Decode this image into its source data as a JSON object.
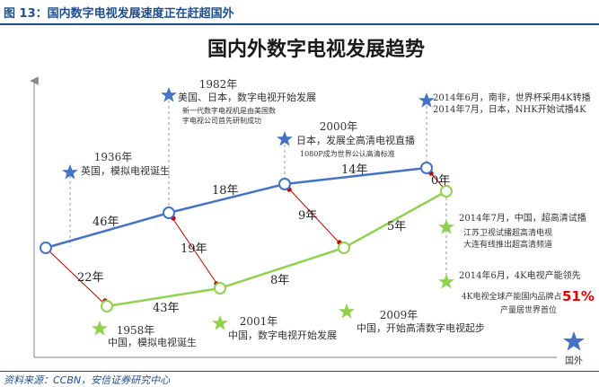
{
  "figure_label": "图 13：国内数字电视发展速度正在赶超国外",
  "title": "国内外数字电视发展趋势",
  "source": "资料来源：CCBN，安信证券研究中心",
  "legend": {
    "foreign_label": "国外"
  },
  "colors": {
    "foreign": "#4472c4",
    "domestic": "#92d050",
    "connector": "#c00000",
    "figure": "#1f4e8c",
    "highlight": "#e00000"
  },
  "foreign_events": [
    {
      "year": "1936年",
      "desc": "英国，模拟电视诞生",
      "note": ""
    },
    {
      "year": "1982年",
      "desc": "美国、日本，数字电视开始发展",
      "note": "新一代数字电视机是由美国数字电视公司首先研制成功"
    },
    {
      "year": "2000年",
      "desc": "日本，发展全高清电视直播",
      "note": "1080P成为世界公认高清标准"
    },
    {
      "year": "",
      "desc": "2014年6月，南非，世界杯采用4K转播",
      "note": "2014年7月，日本，NHK开始试播4K"
    }
  ],
  "domestic_events": [
    {
      "year": "1958年",
      "desc": "中国，模拟电视诞生",
      "note": ""
    },
    {
      "year": "2001年",
      "desc": "中国，数字电视开始发展",
      "note": ""
    },
    {
      "year": "2009年",
      "desc": "中国，开始高清数字电视起步",
      "note": ""
    },
    {
      "year": "",
      "desc": "2014年7月，中国，超高清试播",
      "note": "江苏卫视试播超高清电视",
      "note2": "大连有线推出超高清频道"
    },
    {
      "year": "",
      "desc": "2014年6月，4K电视产能领先",
      "note": "4K电视全球产能国内品牌占",
      "percent": "51%",
      "note2": "产量居世界首位"
    }
  ],
  "foreign_gaps": [
    "46年",
    "18年",
    "14年"
  ],
  "domestic_gaps": [
    "43年",
    "8年",
    "5年"
  ],
  "lag_gaps": [
    "22年",
    "19年",
    "9年",
    "0年"
  ]
}
